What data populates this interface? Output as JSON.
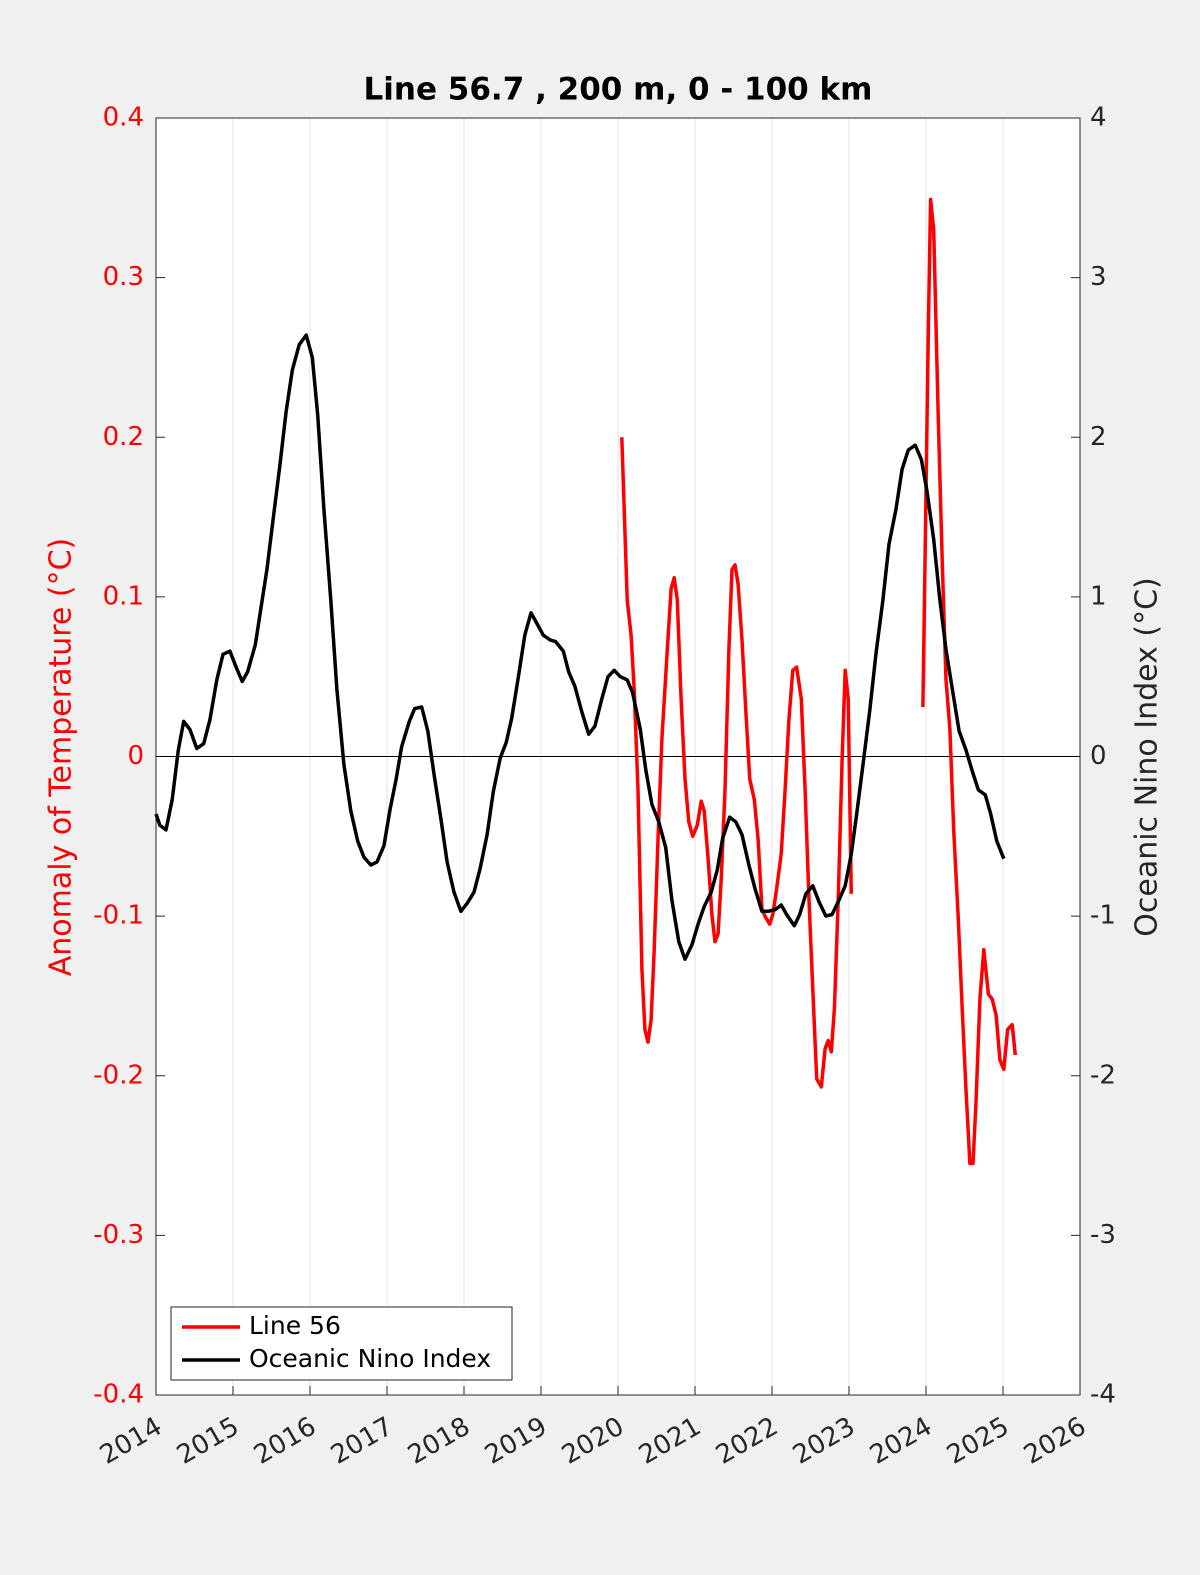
{
  "chart_data": {
    "type": "line",
    "title": "Line 56.7 , 200 m, 0 - 100 km",
    "y_label": "Anomaly of Temperature (°C)",
    "y2_label": "Oceanic Nino Index (°C)",
    "xlim": [
      2014,
      2026
    ],
    "xticks": [
      2014,
      2015,
      2016,
      2017,
      2018,
      2019,
      2020,
      2021,
      2022,
      2023,
      2024,
      2025,
      2026
    ],
    "ylim": [
      -0.4,
      0.4
    ],
    "yticks": [
      -0.4,
      -0.3,
      -0.2,
      -0.1,
      0,
      0.1,
      0.2,
      0.3,
      0.4
    ],
    "y2lim": [
      -4,
      4
    ],
    "y2ticks": [
      -4,
      -3,
      -2,
      -1,
      0,
      1,
      2,
      3,
      4
    ],
    "grid": "x",
    "zero_line": true,
    "legend": "lower left",
    "y_color": "#ff0000",
    "series": [
      {
        "name": "Line 56",
        "color": "#ff0000",
        "axis": "y",
        "x": [
          2020.05,
          2020.08,
          2020.12,
          2020.17,
          2020.21,
          2020.26,
          2020.31,
          2020.35,
          2020.39,
          2020.43,
          2020.47,
          2020.52,
          2020.57,
          2020.64,
          2020.69,
          2020.73,
          2020.77,
          2020.82,
          2020.87,
          2020.92,
          2020.97,
          2021.03,
          2021.08,
          2021.12,
          2021.17,
          2021.22,
          2021.26,
          2021.3,
          2021.34,
          2021.39,
          2021.44,
          2021.48,
          2021.52,
          2021.56,
          2021.61,
          2021.66,
          2021.71,
          2021.77,
          2021.82,
          2021.87,
          2021.92,
          2021.97,
          2022.01,
          2022.06,
          2022.12,
          2022.17,
          2022.22,
          2022.27,
          2022.32,
          2022.38,
          2022.43,
          2022.48,
          2022.53,
          2022.58,
          2022.64,
          2022.69,
          2022.73,
          2022.77,
          2022.81,
          2022.86,
          2022.91,
          2022.95,
          2022.99,
          2023.03,
          null,
          2023.96,
          2023.99,
          2024.03,
          2024.06,
          2024.1,
          2024.16,
          2024.21,
          2024.26,
          2024.31,
          2024.36,
          2024.42,
          2024.47,
          2024.52,
          2024.57,
          2024.61,
          2024.65,
          2024.7,
          2024.75,
          2024.81,
          2024.86,
          2024.91,
          2024.96,
          2025.01,
          2025.06,
          2025.12,
          2025.16
        ],
        "values": [
          0.2,
          0.155,
          0.098,
          0.076,
          0.042,
          -0.021,
          -0.133,
          -0.171,
          -0.179,
          -0.165,
          -0.121,
          -0.052,
          0.011,
          0.067,
          0.105,
          0.112,
          0.098,
          0.036,
          -0.014,
          -0.041,
          -0.05,
          -0.043,
          -0.028,
          -0.034,
          -0.064,
          -0.099,
          -0.116,
          -0.111,
          -0.077,
          -0.021,
          0.067,
          0.117,
          0.12,
          0.108,
          0.073,
          0.029,
          -0.014,
          -0.027,
          -0.052,
          -0.096,
          -0.101,
          -0.105,
          -0.099,
          -0.083,
          -0.061,
          -0.021,
          0.023,
          0.054,
          0.056,
          0.036,
          -0.021,
          -0.09,
          -0.146,
          -0.202,
          -0.207,
          -0.183,
          -0.178,
          -0.185,
          -0.158,
          -0.09,
          -0.002,
          0.054,
          0.036,
          -0.086,
          null,
          0.031,
          0.13,
          0.267,
          0.349,
          0.33,
          0.211,
          0.123,
          0.048,
          0.017,
          -0.046,
          -0.102,
          -0.158,
          -0.209,
          -0.255,
          -0.255,
          -0.215,
          -0.152,
          -0.121,
          -0.149,
          -0.152,
          -0.162,
          -0.19,
          -0.196,
          -0.171,
          -0.168,
          -0.187
        ]
      },
      {
        "name": "Oceanic Nino Index",
        "color": "#000000",
        "axis": "y2",
        "x": [
          2014.0,
          2014.05,
          2014.13,
          2014.21,
          2014.29,
          2014.36,
          2014.44,
          2014.53,
          2014.62,
          2014.7,
          2014.79,
          2014.87,
          2014.96,
          2015.04,
          2015.12,
          2015.19,
          2015.29,
          2015.36,
          2015.44,
          2015.52,
          2015.61,
          2015.69,
          2015.77,
          2015.86,
          2015.95,
          2016.03,
          2016.1,
          2016.18,
          2016.27,
          2016.35,
          2016.44,
          2016.53,
          2016.62,
          2016.7,
          2016.79,
          2016.87,
          2016.96,
          2017.04,
          2017.12,
          2017.19,
          2017.29,
          2017.36,
          2017.45,
          2017.53,
          2017.61,
          2017.7,
          2017.78,
          2017.87,
          2017.96,
          2018.04,
          2018.13,
          2018.21,
          2018.3,
          2018.38,
          2018.47,
          2018.55,
          2018.62,
          2018.7,
          2018.79,
          2018.87,
          2018.95,
          2019.03,
          2019.12,
          2019.19,
          2019.29,
          2019.36,
          2019.44,
          2019.53,
          2019.62,
          2019.7,
          2019.79,
          2019.87,
          2019.95,
          2020.03,
          2020.12,
          2020.19,
          2020.29,
          2020.36,
          2020.44,
          2020.53,
          2020.62,
          2020.7,
          2020.79,
          2020.87,
          2020.96,
          2021.04,
          2021.12,
          2021.21,
          2021.29,
          2021.36,
          2021.45,
          2021.53,
          2021.61,
          2021.7,
          2021.78,
          2021.87,
          2021.95,
          2022.04,
          2022.12,
          2022.19,
          2022.29,
          2022.36,
          2022.44,
          2022.53,
          2022.61,
          2022.7,
          2022.78,
          2022.86,
          2022.95,
          2023.03,
          2023.1,
          2023.19,
          2023.27,
          2023.35,
          2023.44,
          2023.52,
          2023.61,
          2023.69,
          2023.77,
          2023.86,
          2023.94,
          2024.01,
          2024.1,
          2024.18,
          2024.26,
          2024.35,
          2024.43,
          2024.52,
          2024.6,
          2024.68,
          2024.77,
          2024.84,
          2024.92,
          2025.01
        ],
        "values": [
          -0.36,
          -0.43,
          -0.46,
          -0.27,
          0.04,
          0.22,
          0.17,
          0.05,
          0.08,
          0.23,
          0.48,
          0.64,
          0.66,
          0.56,
          0.47,
          0.53,
          0.7,
          0.92,
          1.17,
          1.48,
          1.83,
          2.16,
          2.42,
          2.58,
          2.64,
          2.5,
          2.14,
          1.55,
          0.98,
          0.42,
          -0.05,
          -0.34,
          -0.53,
          -0.63,
          -0.68,
          -0.66,
          -0.56,
          -0.33,
          -0.14,
          0.06,
          0.22,
          0.3,
          0.31,
          0.16,
          -0.11,
          -0.39,
          -0.66,
          -0.85,
          -0.97,
          -0.92,
          -0.85,
          -0.7,
          -0.49,
          -0.22,
          -0.01,
          0.09,
          0.24,
          0.48,
          0.76,
          0.9,
          0.83,
          0.76,
          0.73,
          0.72,
          0.66,
          0.53,
          0.44,
          0.28,
          0.14,
          0.19,
          0.36,
          0.5,
          0.54,
          0.5,
          0.48,
          0.4,
          0.17,
          -0.08,
          -0.3,
          -0.41,
          -0.57,
          -0.9,
          -1.16,
          -1.27,
          -1.18,
          -1.05,
          -0.94,
          -0.85,
          -0.71,
          -0.51,
          -0.38,
          -0.41,
          -0.49,
          -0.68,
          -0.83,
          -0.97,
          -0.97,
          -0.96,
          -0.93,
          -0.99,
          -1.06,
          -0.99,
          -0.86,
          -0.81,
          -0.91,
          -1.0,
          -0.99,
          -0.91,
          -0.81,
          -0.61,
          -0.36,
          -0.02,
          0.29,
          0.64,
          0.98,
          1.33,
          1.55,
          1.8,
          1.92,
          1.95,
          1.86,
          1.67,
          1.36,
          0.98,
          0.67,
          0.4,
          0.16,
          0.04,
          -0.09,
          -0.21,
          -0.24,
          -0.36,
          -0.53,
          -0.64
        ]
      }
    ]
  }
}
